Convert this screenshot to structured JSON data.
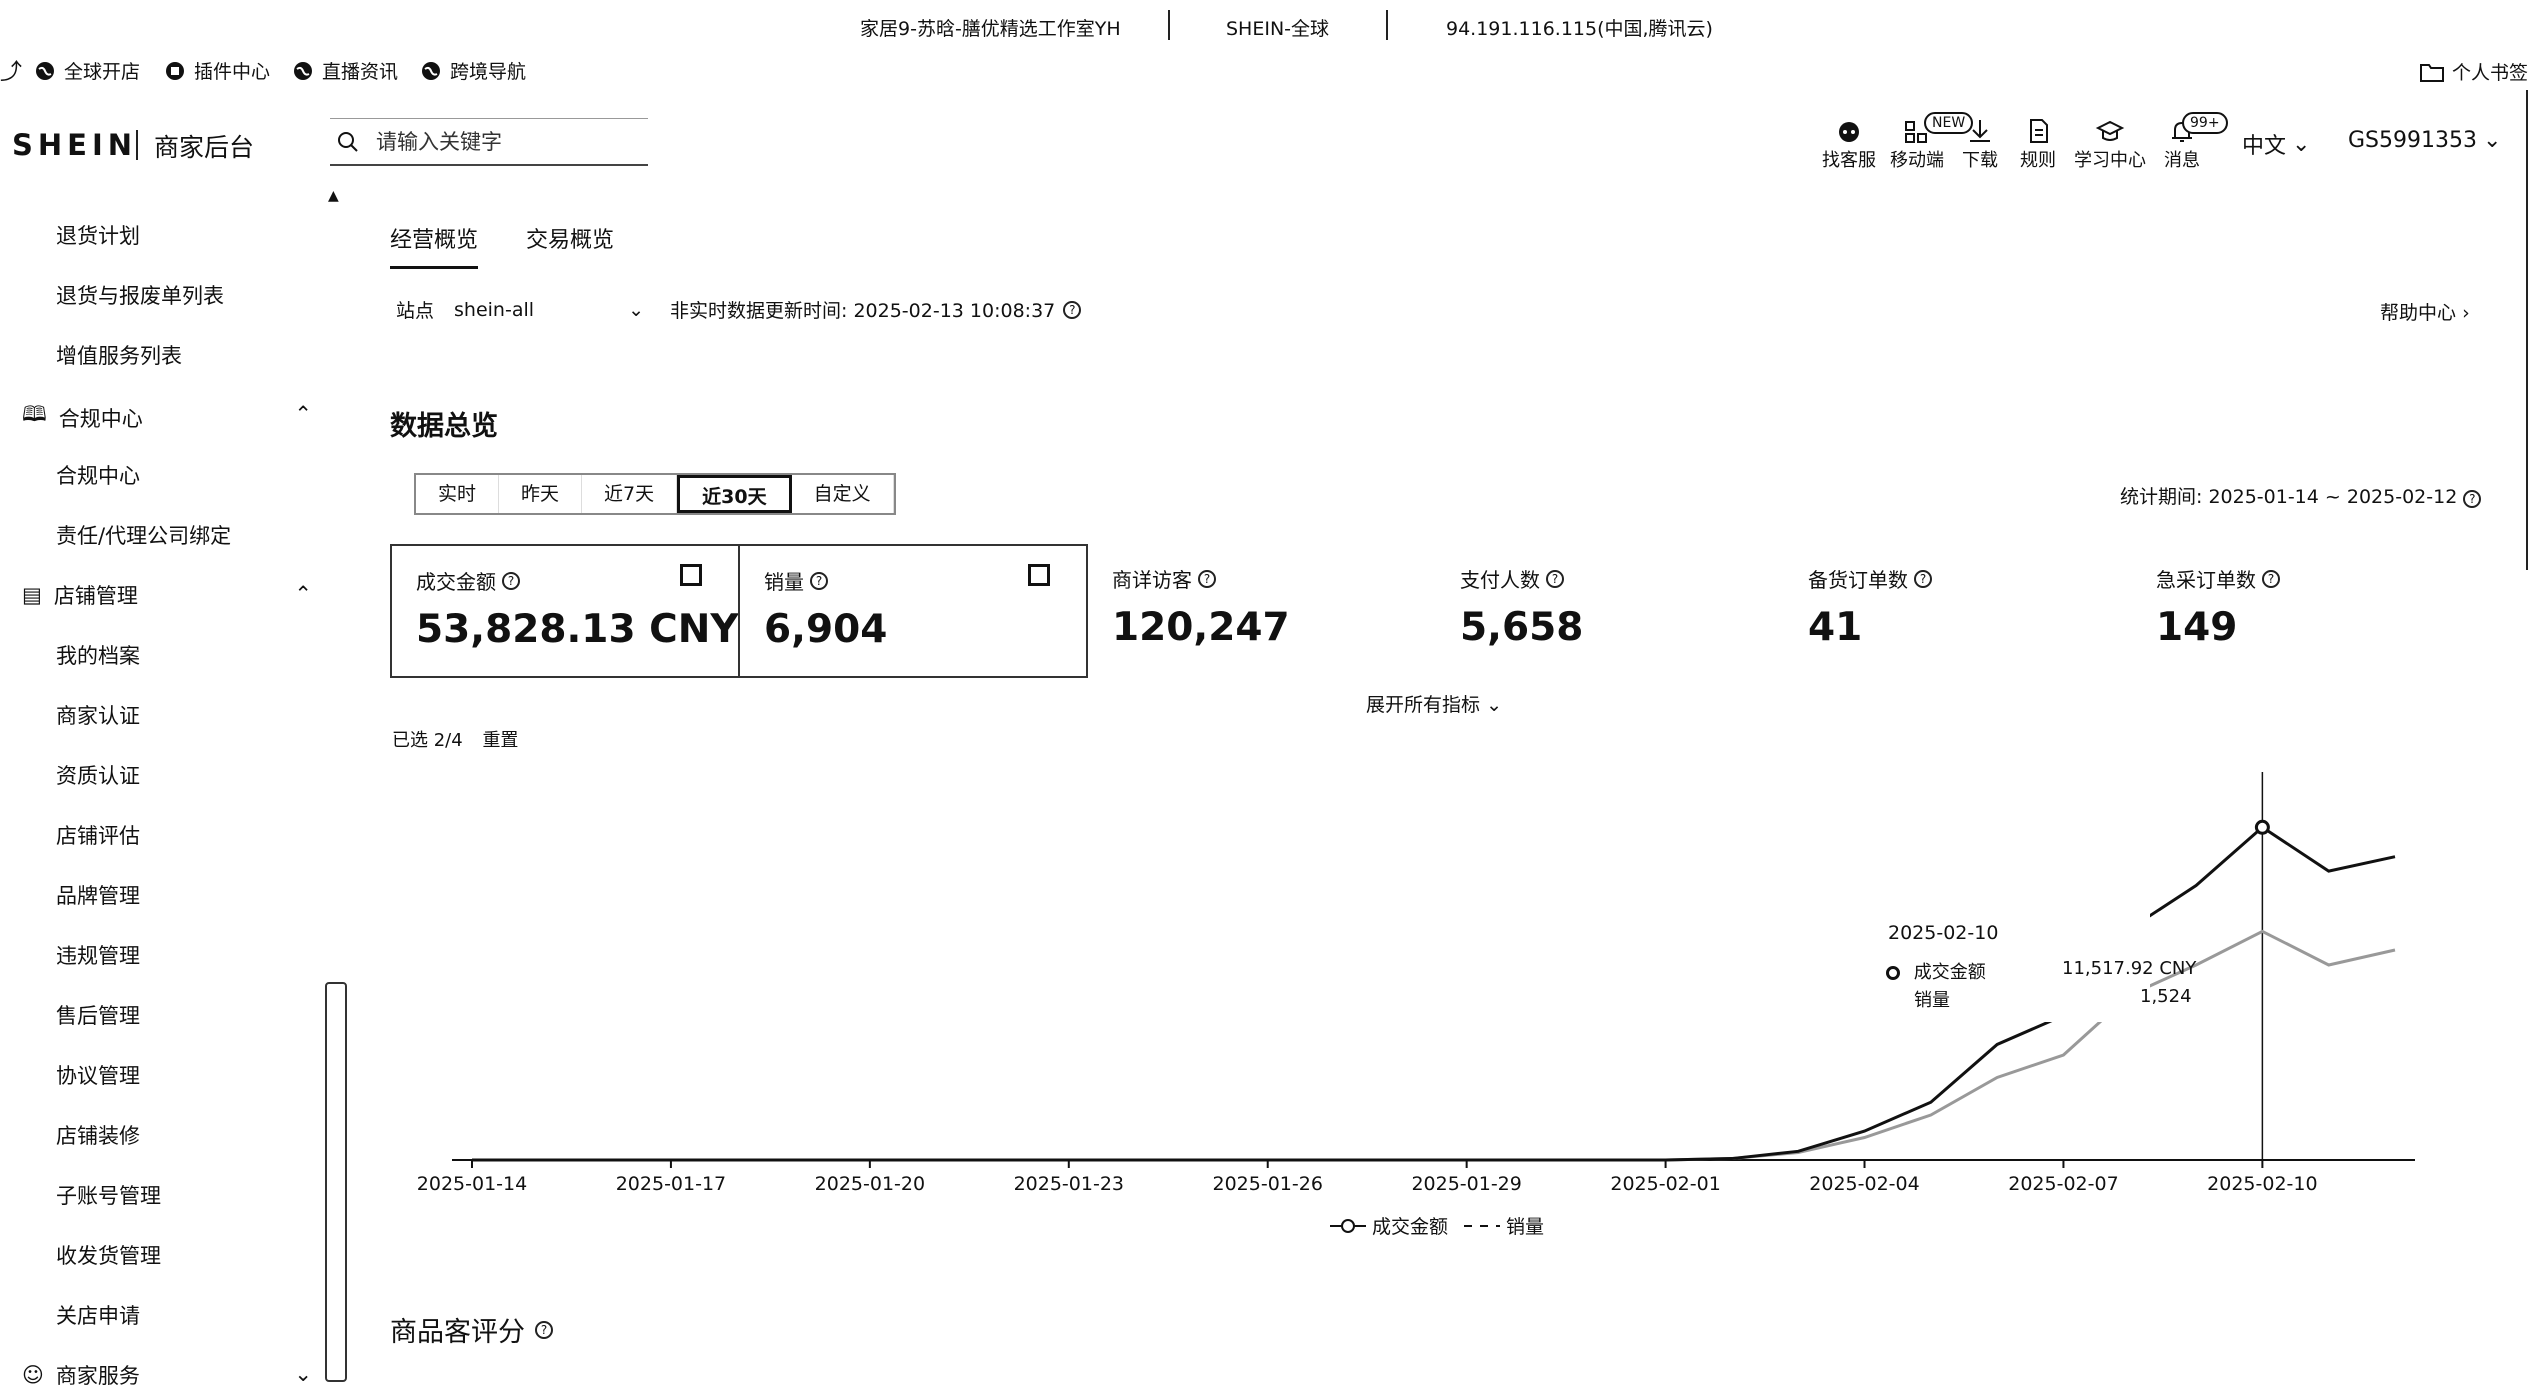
{
  "info_bar": {
    "shop": "家居9-苏晗-膳优精选工作室YH",
    "platform": "SHEIN-全球",
    "ip": "94.191.116.115(中国,腾讯云)"
  },
  "bookmarks": [
    {
      "label": "全球开店",
      "icon": "globe-icon"
    },
    {
      "label": "插件中心",
      "icon": "plugin-icon"
    },
    {
      "label": "直播资讯",
      "icon": "globe-icon"
    },
    {
      "label": "跨境导航",
      "icon": "globe-icon"
    }
  ],
  "personal_bookmarks": "个人书签",
  "header": {
    "logo": "SHEIN",
    "subtitle": "商家后台",
    "search_placeholder": "请输入关键字",
    "tools": [
      {
        "label": "找客服",
        "icon": "customer-service-icon"
      },
      {
        "label": "移动端",
        "icon": "qr-code-icon",
        "badge": "NEW"
      },
      {
        "label": "下载",
        "icon": "download-icon"
      },
      {
        "label": "规则",
        "icon": "document-icon"
      },
      {
        "label": "学习中心",
        "icon": "graduation-cap-icon"
      },
      {
        "label": "消息",
        "icon": "bell-icon",
        "badge": "99+"
      }
    ],
    "language": "中文",
    "account": "GS5991353"
  },
  "sidebar": {
    "items_top": [
      "退货计划",
      "退货与报废单列表",
      "增值服务列表"
    ],
    "group_compliance": "合规中心",
    "compliance_items": [
      "合规中心",
      "责任/代理公司绑定"
    ],
    "group_store": "店铺管理",
    "store_items": [
      "我的档案",
      "商家认证",
      "资质认证",
      "店铺评估",
      "品牌管理",
      "违规管理",
      "售后管理",
      "协议管理",
      "店铺装修",
      "子账号管理",
      "收发货管理",
      "关店申请"
    ],
    "group_service": "商家服务"
  },
  "tabs": [
    "经营概览",
    "交易概览"
  ],
  "site": {
    "label": "站点",
    "value": "shein-all",
    "update_time": "非实时数据更新时间: 2025-02-13 10:08:37"
  },
  "help_center": "帮助中心",
  "overview": {
    "title": "数据总览",
    "ranges": [
      "实时",
      "昨天",
      "近7天",
      "近30天",
      "自定义"
    ],
    "active_range": "近30天",
    "period": "统计期间: 2025-01-14 ~ 2025-02-12",
    "metrics": [
      {
        "label": "成交金额",
        "value": "53,828.13 CNY",
        "selected": true
      },
      {
        "label": "销量",
        "value": "6,904",
        "selected": true
      },
      {
        "label": "商详访客",
        "value": "120,247",
        "selected": false
      },
      {
        "label": "支付人数",
        "value": "5,658",
        "selected": false
      },
      {
        "label": "备货订单数",
        "value": "41",
        "selected": false
      },
      {
        "label": "急采订单数",
        "value": "149",
        "selected": false
      }
    ],
    "expand_all": "展开所有指标",
    "selected_count": "已选 2/4",
    "reset": "重置"
  },
  "chart_data": {
    "type": "line",
    "x": [
      "2025-01-14",
      "2025-01-15",
      "2025-01-16",
      "2025-01-17",
      "2025-01-18",
      "2025-01-19",
      "2025-01-20",
      "2025-01-21",
      "2025-01-22",
      "2025-01-23",
      "2025-01-24",
      "2025-01-25",
      "2025-01-26",
      "2025-01-27",
      "2025-01-28",
      "2025-01-29",
      "2025-01-30",
      "2025-01-31",
      "2025-02-01",
      "2025-02-02",
      "2025-02-03",
      "2025-02-04",
      "2025-02-05",
      "2025-02-06",
      "2025-02-07",
      "2025-02-08",
      "2025-02-09",
      "2025-02-10",
      "2025-02-11",
      "2025-02-12"
    ],
    "x_tick_labels": [
      "2025-01-14",
      "2025-01-17",
      "2025-01-20",
      "2025-01-23",
      "2025-01-26",
      "2025-01-29",
      "2025-02-01",
      "2025-02-04",
      "2025-02-07",
      "2025-02-10"
    ],
    "series": [
      {
        "name": "成交金额",
        "values": [
          0,
          0,
          0,
          0,
          0,
          0,
          0,
          0,
          0,
          0,
          0,
          0,
          0,
          0,
          0,
          0,
          0,
          0,
          0,
          50,
          300,
          1000,
          2000,
          4000,
          5000,
          8000,
          9500,
          11517.92,
          10000,
          10500
        ]
      },
      {
        "name": "销量",
        "values": [
          0,
          0,
          0,
          0,
          0,
          0,
          0,
          0,
          0,
          0,
          0,
          0,
          0,
          0,
          0,
          0,
          0,
          0,
          0,
          10,
          50,
          150,
          300,
          550,
          700,
          1100,
          1300,
          1524,
          1300,
          1400
        ]
      }
    ],
    "tooltip": {
      "date": "2025-02-10",
      "rows": [
        {
          "label": "成交金额",
          "value": "11,517.92 CNY"
        },
        {
          "label": "销量",
          "value": "1,524"
        }
      ]
    },
    "ylim": [
      0,
      13500
    ]
  },
  "rating": {
    "title": "商品客评分"
  }
}
